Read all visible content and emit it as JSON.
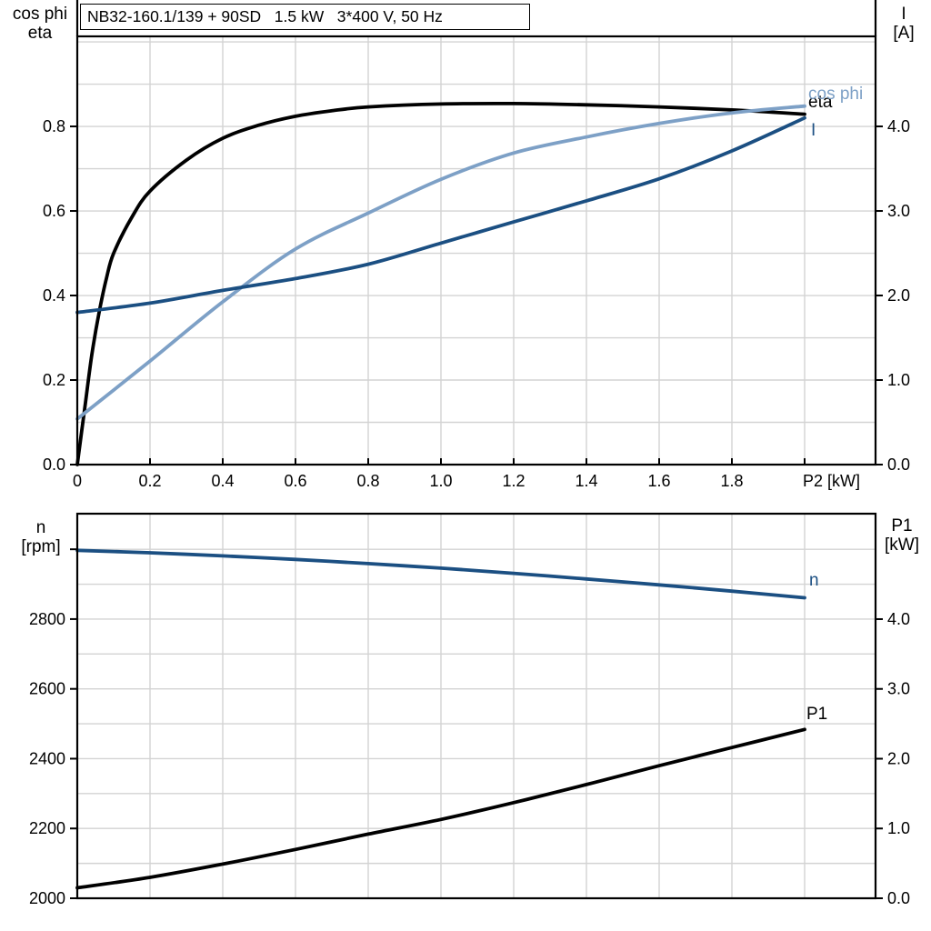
{
  "colors": {
    "black": "#000000",
    "dark_blue": "#1B4F82",
    "light_blue": "#7DA0C6",
    "grid": "#D3D3D3",
    "frame": "#000000",
    "background": "#FFFFFF"
  },
  "chart_data": [
    {
      "type": "line",
      "title_box": "NB32-160.1/139 + 90SD   1.5 kW   3*400 V, 50 Hz",
      "x_axis": {
        "min": 0,
        "max": 2.195,
        "grid_step": 0.2,
        "grid_max": 2.0,
        "ticks": [
          {
            "v": 0,
            "label": "0"
          },
          {
            "v": 0.2,
            "label": "0.2"
          },
          {
            "v": 0.4,
            "label": "0.4"
          },
          {
            "v": 0.6,
            "label": "0.6"
          },
          {
            "v": 0.8,
            "label": "0.8"
          },
          {
            "v": 1.0,
            "label": "1.0"
          },
          {
            "v": 1.2,
            "label": "1.2"
          },
          {
            "v": 1.4,
            "label": "1.4"
          },
          {
            "v": 1.6,
            "label": "1.6"
          },
          {
            "v": 1.8,
            "label": "1.8"
          },
          {
            "v": 2.0,
            "label": "P2 [kW]"
          }
        ]
      },
      "y_left": {
        "label_lines": [
          "cos phi",
          "eta"
        ],
        "min": 0,
        "max": 1.013,
        "grid_step": 0.1,
        "grid_max": 1.0,
        "ticks": [
          {
            "v": 0.0,
            "label": "0.0"
          },
          {
            "v": 0.2,
            "label": "0.2"
          },
          {
            "v": 0.4,
            "label": "0.4"
          },
          {
            "v": 0.6,
            "label": "0.6"
          },
          {
            "v": 0.8,
            "label": "0.8"
          }
        ]
      },
      "y_right": {
        "label_lines": [
          "I",
          "[A]"
        ],
        "min": 0,
        "max": 5.065,
        "ticks": [
          {
            "v": 0,
            "label": "0.0"
          },
          {
            "v": 1,
            "label": "1.0"
          },
          {
            "v": 2,
            "label": "2.0"
          },
          {
            "v": 3,
            "label": "3.0"
          },
          {
            "v": 4,
            "label": "4.0"
          }
        ]
      },
      "series": [
        {
          "name": "eta",
          "axis": "left",
          "color_key": "black",
          "end_label": "eta",
          "label_dx": 4,
          "label_dy": -14,
          "x": [
            0,
            0.02,
            0.04,
            0.06,
            0.08,
            0.1,
            0.15,
            0.2,
            0.3,
            0.4,
            0.5,
            0.6,
            0.7,
            0.8,
            1.0,
            1.2,
            1.4,
            1.6,
            1.8,
            2.0
          ],
          "y": [
            0,
            0.13,
            0.26,
            0.36,
            0.44,
            0.5,
            0.585,
            0.647,
            0.72,
            0.772,
            0.803,
            0.824,
            0.837,
            0.846,
            0.853,
            0.854,
            0.851,
            0.846,
            0.839,
            0.829
          ]
        },
        {
          "name": "cos phi",
          "axis": "left",
          "color_key": "light_blue",
          "end_label": "cos phi",
          "label_dx": 4,
          "label_dy": -14,
          "x": [
            0,
            0.2,
            0.4,
            0.6,
            0.8,
            1.0,
            1.2,
            1.4,
            1.6,
            1.8,
            2.0
          ],
          "y": [
            0.108,
            0.245,
            0.385,
            0.51,
            0.595,
            0.675,
            0.737,
            0.775,
            0.807,
            0.832,
            0.848
          ]
        },
        {
          "name": "I",
          "axis": "right",
          "color_key": "dark_blue",
          "end_label": "I",
          "label_dx": 7,
          "label_dy": 13,
          "x": [
            0,
            0.2,
            0.4,
            0.6,
            0.8,
            1.0,
            1.2,
            1.4,
            1.6,
            1.8,
            2.0
          ],
          "y": [
            1.8,
            1.91,
            2.06,
            2.2,
            2.37,
            2.62,
            2.87,
            3.12,
            3.38,
            3.71,
            4.1
          ]
        }
      ]
    },
    {
      "type": "line",
      "x_axis": {
        "min": 0,
        "max": 2.195,
        "grid_step": 0.2,
        "grid_max": 2.0,
        "ticks": []
      },
      "y_left": {
        "label_lines": [
          "n",
          "[rpm]"
        ],
        "min": 2000,
        "max": 3102,
        "grid_step": 100,
        "grid_max": 3000,
        "ticks": [
          {
            "v": 2000,
            "label": "2000"
          },
          {
            "v": 2200,
            "label": "2200"
          },
          {
            "v": 2400,
            "label": "2400"
          },
          {
            "v": 2600,
            "label": "2600"
          },
          {
            "v": 2800,
            "label": "2800"
          },
          {
            "v": 3000,
            "label": ""
          }
        ]
      },
      "y_right": {
        "label_lines": [
          "P1",
          "[kW]"
        ],
        "min": 0,
        "max": 5.511,
        "ticks": [
          {
            "v": 0,
            "label": "0.0"
          },
          {
            "v": 1,
            "label": "1.0"
          },
          {
            "v": 2,
            "label": "2.0"
          },
          {
            "v": 3,
            "label": "3.0"
          },
          {
            "v": 4,
            "label": "4.0"
          }
        ]
      },
      "series": [
        {
          "name": "n",
          "axis": "left",
          "color_key": "dark_blue",
          "end_label": "n",
          "label_dx": 5,
          "label_dy": -20,
          "x": [
            0,
            0.2,
            0.4,
            0.6,
            0.8,
            1.0,
            1.2,
            1.4,
            1.6,
            1.8,
            2.0
          ],
          "y": [
            2997,
            2990,
            2981,
            2971,
            2959,
            2946,
            2931,
            2915,
            2898,
            2880,
            2861
          ]
        },
        {
          "name": "P1",
          "axis": "right",
          "color_key": "black",
          "end_label": "P1",
          "label_dx": 2,
          "label_dy": -18,
          "x": [
            0,
            0.2,
            0.4,
            0.6,
            0.8,
            1.0,
            1.2,
            1.4,
            1.6,
            1.8,
            2.0
          ],
          "y": [
            0.15,
            0.3,
            0.49,
            0.7,
            0.92,
            1.13,
            1.37,
            1.63,
            1.9,
            2.16,
            2.42
          ]
        }
      ]
    }
  ]
}
